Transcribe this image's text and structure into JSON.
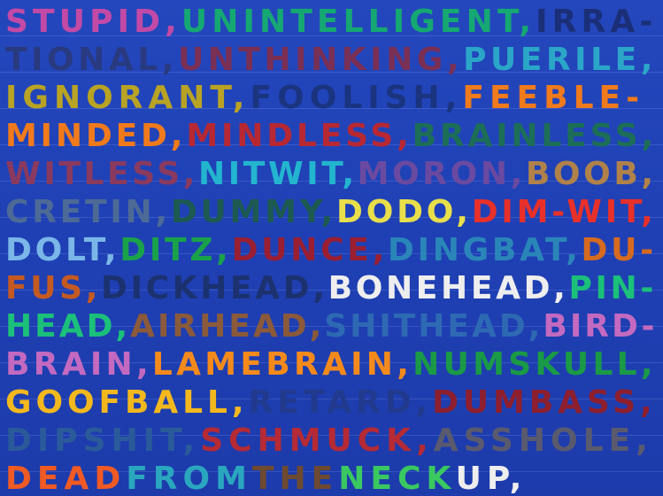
{
  "lines": [
    {
      "words": [
        {
          "text": "STUPID,",
          "color": "#c24aa6"
        },
        {
          "text": "UNINTELLIGENT,",
          "color": "#15a872"
        },
        {
          "text": "IRRA-",
          "color": "#1b2f78"
        }
      ]
    },
    {
      "words": [
        {
          "text": "TIONAL,",
          "color": "#2a3a80"
        },
        {
          "text": "UNTHINKING,",
          "color": "#7a2f55"
        },
        {
          "text": "PUERILE,",
          "color": "#2ba6c8"
        }
      ]
    },
    {
      "words": [
        {
          "text": "IGNORANT,",
          "color": "#b8a324"
        },
        {
          "text": "FOOLISH,",
          "color": "#1b3480"
        },
        {
          "text": "FEEBLE-",
          "color": "#f07a1c"
        }
      ]
    },
    {
      "words": [
        {
          "text": "MINDED,",
          "color": "#f07a1c"
        },
        {
          "text": "MINDLESS,",
          "color": "#b82833"
        },
        {
          "text": "BRAINLESS,",
          "color": "#1c6e57"
        }
      ]
    },
    {
      "words": [
        {
          "text": "WITLESS,",
          "color": "#8a3a5f"
        },
        {
          "text": "NITWIT,",
          "color": "#23b5cf"
        },
        {
          "text": "MORON,",
          "color": "#6a4aa0"
        },
        {
          "text": "BOOB,",
          "color": "#b0824a"
        }
      ]
    },
    {
      "words": [
        {
          "text": "CRETIN,",
          "color": "#4d6a96"
        },
        {
          "text": "DUMMY,",
          "color": "#1c5a52"
        },
        {
          "text": "DODO,",
          "color": "#e8df4a"
        },
        {
          "text": "DIM-WIT,",
          "color": "#e8302a"
        }
      ]
    },
    {
      "words": [
        {
          "text": "DOLT,",
          "color": "#7ab7e8"
        },
        {
          "text": "DITZ,",
          "color": "#1aa24a"
        },
        {
          "text": "DUNCE,",
          "color": "#9a1f33"
        },
        {
          "text": "DINGBAT,",
          "color": "#2a86b8"
        },
        {
          "text": "DU-",
          "color": "#d66a20"
        }
      ]
    },
    {
      "words": [
        {
          "text": "FUS,",
          "color": "#c45a22"
        },
        {
          "text": "DICKHEAD,",
          "color": "#1c3270"
        },
        {
          "text": "BONEHEAD,",
          "color": "#eeeeee"
        },
        {
          "text": "PIN-",
          "color": "#1bc07a"
        }
      ]
    },
    {
      "words": [
        {
          "text": "HEAD,",
          "color": "#1bc07a"
        },
        {
          "text": "AIRHEAD,",
          "color": "#8a5a3a"
        },
        {
          "text": "SHITHEAD,",
          "color": "#2e69b4"
        },
        {
          "text": "BIRD-",
          "color": "#c36ac0"
        }
      ]
    },
    {
      "words": [
        {
          "text": "BRAIN,",
          "color": "#c36ac0"
        },
        {
          "text": "LAMEBRAIN,",
          "color": "#f58a1c"
        },
        {
          "text": "NUMSKULL,",
          "color": "#1a9a46"
        }
      ]
    },
    {
      "words": [
        {
          "text": "GOOFBALL,",
          "color": "#f3b81e"
        },
        {
          "text": "RETARD,",
          "color": "#213a8e"
        },
        {
          "text": "DUMBASS,",
          "color": "#8e1f2e"
        }
      ]
    },
    {
      "words": [
        {
          "text": "DIPSHIT,",
          "color": "#2b5a9a"
        },
        {
          "text": "SCHMUCK,",
          "color": "#b52a34"
        },
        {
          "text": "ASSHOLE,",
          "color": "#5a5a6e"
        }
      ]
    },
    {
      "words": [
        {
          "text": "DEAD",
          "color": "#f05a24"
        },
        {
          "text": "FROM",
          "color": "#2aa7bf"
        },
        {
          "text": "THE",
          "color": "#6e4a30"
        },
        {
          "text": "NECK",
          "color": "#3ac860"
        },
        {
          "text": "UP,",
          "color": "#eeeeee"
        }
      ]
    }
  ]
}
